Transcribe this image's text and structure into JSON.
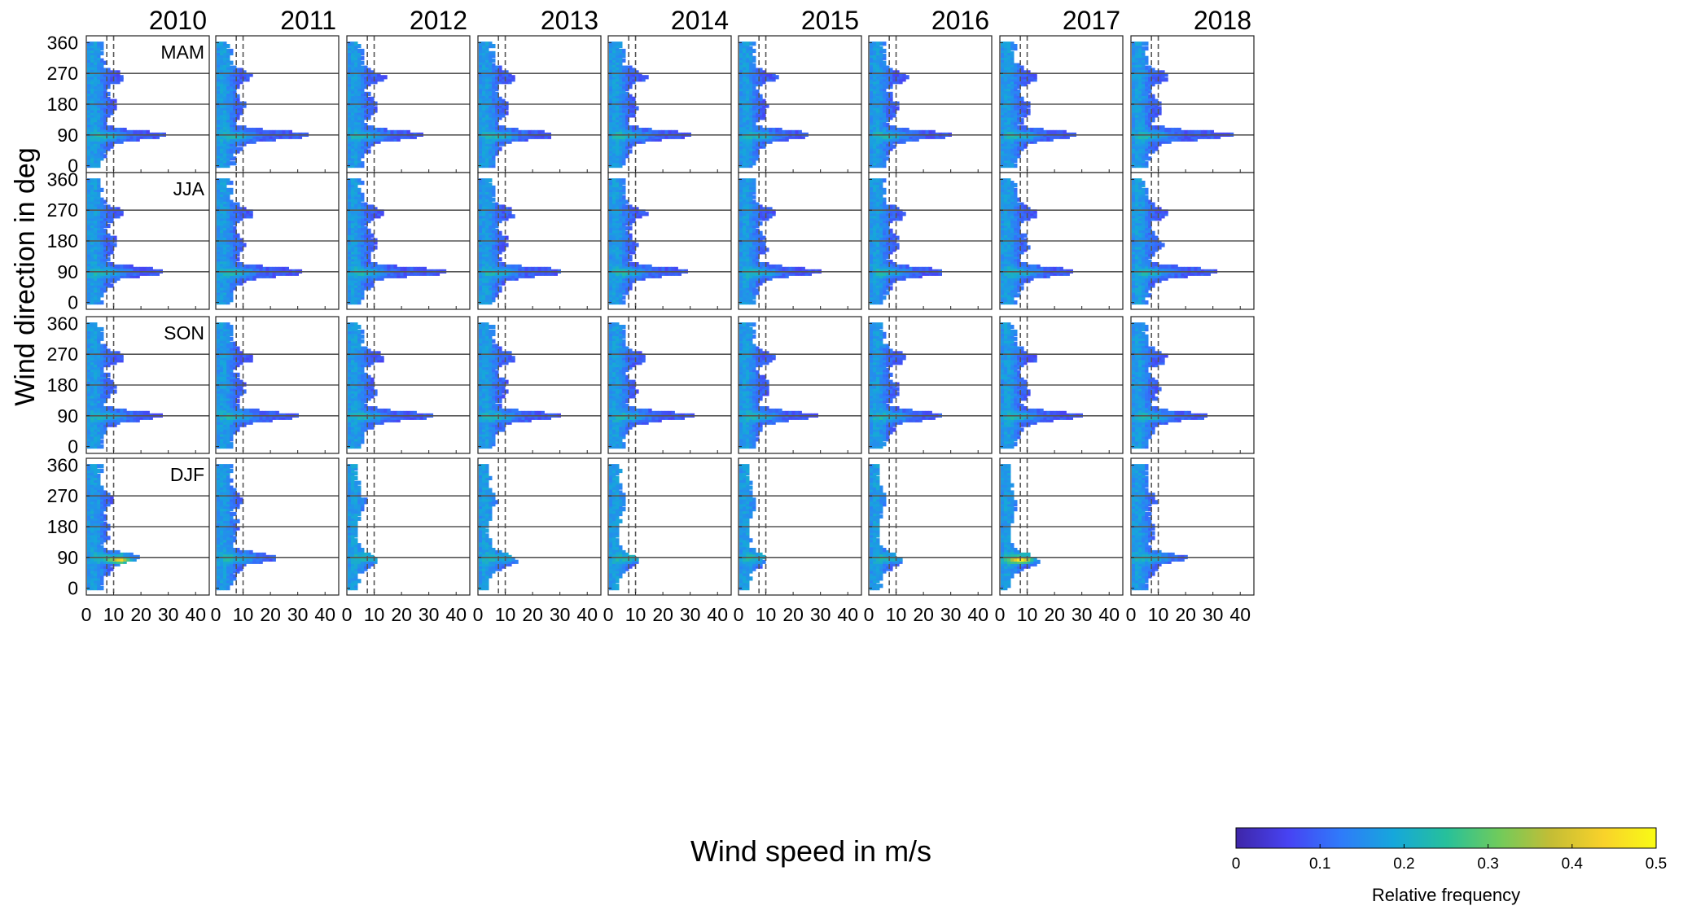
{
  "chart_data": {
    "type": "heatmap",
    "layout": "4 rows x 9 columns of small-multiple 2D histograms",
    "columns": [
      "2010",
      "2011",
      "2012",
      "2013",
      "2014",
      "2015",
      "2016",
      "2017",
      "2018"
    ],
    "rows": [
      "MAM",
      "JJA",
      "SON",
      "DJF"
    ],
    "xlabel": "Wind speed in m/s",
    "ylabel": "Wind direction in deg",
    "x_ticks": [
      0,
      10,
      20,
      30,
      40
    ],
    "y_ticks": [
      0,
      90,
      180,
      270,
      360
    ],
    "xlim": [
      0,
      45
    ],
    "ylim": [
      -20,
      380
    ],
    "horizontal_reference_lines_deg": [
      90,
      180,
      270
    ],
    "vertical_dashed_lines_ms": [
      7.5,
      10
    ],
    "colorbar": {
      "label": "Relative frequency",
      "range": [
        0,
        0.5
      ],
      "ticks": [
        0,
        0.1,
        0.2,
        0.3,
        0.4,
        0.5
      ],
      "colormap": [
        "#3e26a8",
        "#4743f3",
        "#2f7bfa",
        "#16a7db",
        "#26c09b",
        "#6fcb5c",
        "#c4bd35",
        "#f9d22a",
        "#f9fb15"
      ]
    },
    "series": [
      {
        "name": "MAM",
        "peak_speed_ms": [
          27,
          31,
          26,
          25,
          27,
          24,
          27,
          25,
          34
        ],
        "peak_direction_deg": [
          90,
          90,
          90,
          90,
          90,
          90,
          90,
          90,
          90
        ]
      },
      {
        "name": "JJA",
        "peak_speed_ms": [
          26,
          30,
          33,
          28,
          27,
          27,
          25,
          25,
          29
        ],
        "peak_direction_deg": [
          90,
          90,
          90,
          90,
          90,
          90,
          90,
          90,
          90
        ]
      },
      {
        "name": "SON",
        "peak_speed_ms": [
          25,
          27,
          28,
          27,
          28,
          25,
          25,
          27,
          25
        ],
        "peak_direction_deg": [
          90,
          90,
          90,
          90,
          90,
          90,
          90,
          90,
          90
        ]
      },
      {
        "name": "DJF",
        "peak_speed_ms": [
          18,
          20,
          9,
          12,
          9,
          8,
          10,
          12,
          18
        ],
        "peak_direction_deg": [
          90,
          90,
          90,
          90,
          90,
          90,
          90,
          90,
          90
        ]
      }
    ]
  }
}
